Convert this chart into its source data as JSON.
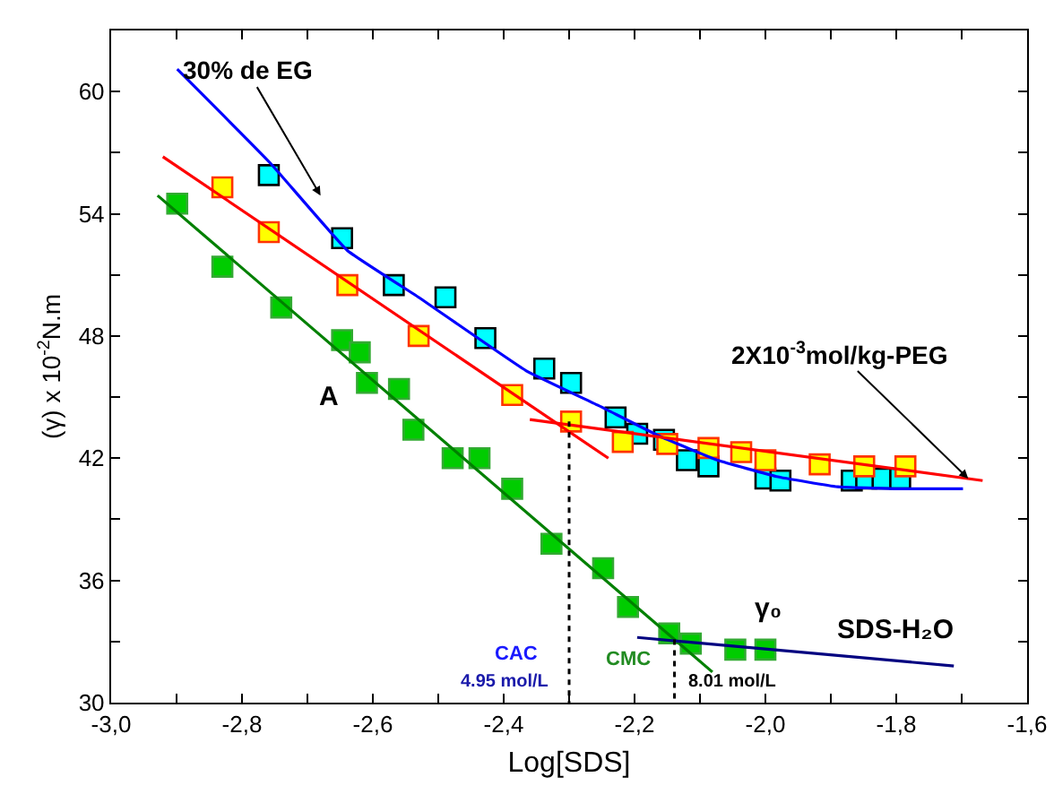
{
  "chart_data": {
    "type": "scatter",
    "xlabel": "Log[SDS]",
    "ylabel": "(γ) x 10$^{-2}$N.m",
    "xlim": [
      -3.0,
      -1.6
    ],
    "ylim": [
      30,
      63
    ],
    "xticks": [
      {
        "value": -3.0,
        "label": "-3,0"
      },
      {
        "value": -2.9,
        "label": null
      },
      {
        "value": -2.8,
        "label": "-2,8"
      },
      {
        "value": -2.7,
        "label": null
      },
      {
        "value": -2.6,
        "label": "-2,6"
      },
      {
        "value": -2.5,
        "label": null
      },
      {
        "value": -2.4,
        "label": "-2,4"
      },
      {
        "value": -2.3,
        "label": null
      },
      {
        "value": -2.2,
        "label": "-2,2"
      },
      {
        "value": -2.1,
        "label": null
      },
      {
        "value": -2.0,
        "label": "-2,0"
      },
      {
        "value": -1.9,
        "label": null
      },
      {
        "value": -1.8,
        "label": "-1,8"
      },
      {
        "value": -1.7,
        "label": null
      },
      {
        "value": -1.6,
        "label": "-1,6"
      }
    ],
    "yticks": [
      30,
      {
        "value": 33,
        "label": null
      },
      36,
      {
        "value": 39,
        "label": null
      },
      42,
      {
        "value": 45,
        "label": null
      },
      48,
      {
        "value": 51,
        "label": null
      },
      54,
      {
        "value": 57,
        "label": null
      },
      60
    ],
    "grid": false,
    "series": [
      {
        "marker": "square",
        "color": "#00ffff",
        "x": [
          -2.759,
          -2.647,
          -2.568,
          -2.489,
          -2.428,
          -2.338,
          -2.297,
          -2.229,
          -2.196,
          -2.155,
          -2.12,
          -2.087,
          -2.0,
          -1.977,
          -1.868,
          -1.846,
          -1.821,
          -1.794
        ],
        "values": [
          55.9,
          52.8,
          50.5,
          49.9,
          47.9,
          46.4,
          45.7,
          44.0,
          43.2,
          42.9,
          41.9,
          41.6,
          41.0,
          40.9,
          40.9,
          41.0,
          41.0,
          41.0
        ]
      },
      {
        "marker": "square",
        "color": "#ffff00",
        "x": [
          -2.83,
          -2.759,
          -2.639,
          -2.53,
          -2.387,
          -2.297,
          -2.218,
          -2.15,
          -2.087,
          -2.037,
          -2.0,
          -1.917,
          -1.849,
          -1.786
        ],
        "values": [
          55.3,
          53.1,
          50.5,
          48.0,
          45.1,
          43.8,
          42.8,
          42.7,
          42.5,
          42.3,
          41.9,
          41.7,
          41.6,
          41.6
        ]
      },
      {
        "marker": "square",
        "color": "#00cc00",
        "x": [
          -2.899,
          -2.83,
          -2.74,
          -2.647,
          -2.62,
          -2.609,
          -2.56,
          -2.538,
          -2.478,
          -2.437,
          -2.387,
          -2.327,
          -2.248,
          -2.21,
          -2.147,
          -2.114,
          -2.046,
          -2.0
        ],
        "values": [
          54.5,
          51.4,
          49.4,
          47.8,
          47.2,
          45.7,
          45.4,
          43.4,
          42.0,
          42.0,
          40.5,
          37.8,
          36.6,
          34.7,
          33.4,
          32.9,
          32.6,
          32.6
        ]
      },
      {
        "type": "line",
        "marker": "none",
        "line_style": "solid",
        "color": "#0000ff",
        "x": [
          -2.899,
          -2.757,
          -2.639,
          -2.53,
          -2.366,
          -2.256,
          -2.163,
          -2.073,
          -1.983,
          -1.89,
          -1.8,
          -1.698
        ],
        "values": [
          61.1,
          56.5,
          52.2,
          49.9,
          46.3,
          44.6,
          43.1,
          41.9,
          41.1,
          40.6,
          40.5,
          40.5
        ]
      },
      {
        "type": "line",
        "marker": "none",
        "line_style": "solid",
        "color": "#ff0000",
        "x": [
          -2.921,
          -2.24
        ],
        "values": [
          56.8,
          42.0
        ]
      },
      {
        "type": "line",
        "marker": "none",
        "line_style": "solid",
        "color": "#ff0000",
        "x": [
          -2.36,
          -1.668
        ],
        "values": [
          43.9,
          40.9
        ]
      },
      {
        "type": "line",
        "marker": "none",
        "line_style": "solid",
        "color": "#008000",
        "x": [
          -2.929,
          -2.081
        ],
        "values": [
          54.9,
          31.5
        ]
      },
      {
        "type": "line",
        "marker": "none",
        "line_style": "solid",
        "color": "#000080",
        "x": [
          -2.196,
          -1.712
        ],
        "values": [
          33.2,
          31.8
        ]
      },
      {
        "type": "line",
        "marker": "none",
        "line_style": "dotted",
        "color": "#000000",
        "x": [
          -2.3,
          -2.3
        ],
        "values": [
          43.8,
          30
        ]
      },
      {
        "type": "line",
        "marker": "none",
        "line_style": "dotted",
        "color": "#000000",
        "x": [
          -2.139,
          -2.139
        ],
        "values": [
          33.1,
          30
        ]
      }
    ],
    "annotations": [
      "30% de EG",
      {
        "text": "2X10$^{-3}$mol/kg-PEG",
        "x": -1.69,
        "y": 41.0
      },
      "A",
      "γ₀",
      "SDS-H₂O",
      "CAC",
      "4.95 mol/L",
      "CMC",
      "8.01 mol/L"
    ]
  }
}
